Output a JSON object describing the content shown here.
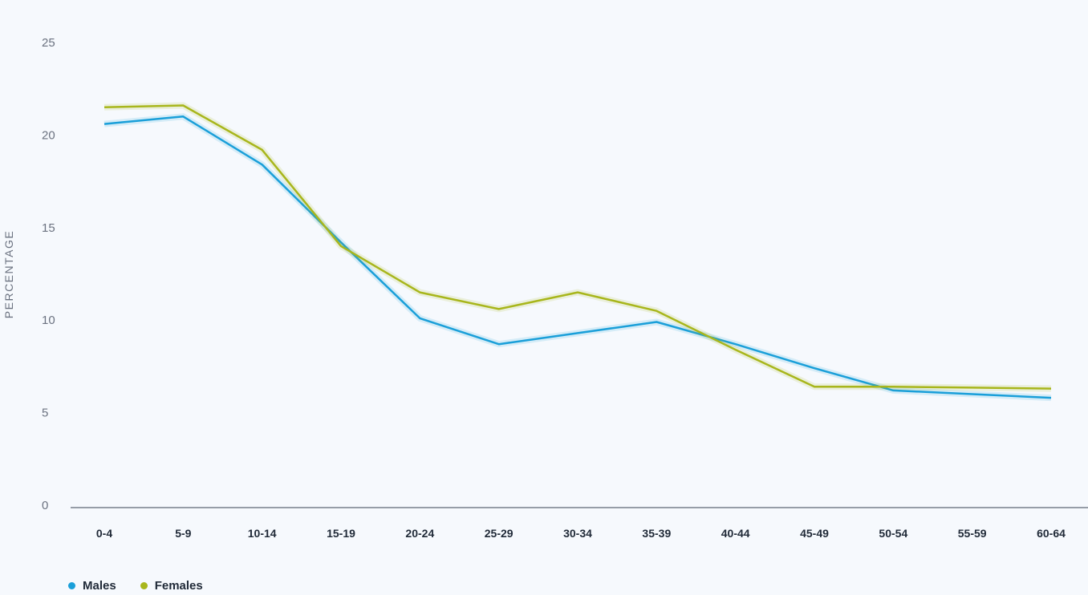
{
  "chart_data": {
    "type": "line",
    "title": "",
    "xlabel": "",
    "ylabel": "PERCENTAGE",
    "ylim": [
      0,
      25
    ],
    "yticks": [
      0,
      5,
      10,
      15,
      20,
      25
    ],
    "grid": false,
    "legend_position": "bottom-left",
    "categories": [
      "0-4",
      "5-9",
      "10-14",
      "15-19",
      "20-24",
      "25-29",
      "30-34",
      "35-39",
      "40-44",
      "45-49",
      "50-54",
      "55-59",
      "60-64"
    ],
    "series": [
      {
        "name": "Males",
        "color": "#1a9fd9",
        "values": [
          20.6,
          21.0,
          18.4,
          14.2,
          10.1,
          8.7,
          9.3,
          9.9,
          8.7,
          7.4,
          6.2,
          6.0,
          5.8
        ]
      },
      {
        "name": "Females",
        "color": "#a8b61c",
        "values": [
          21.5,
          21.6,
          19.2,
          14.0,
          11.5,
          10.6,
          11.5,
          10.5,
          8.4,
          6.4,
          6.4,
          6.35,
          6.3
        ]
      }
    ]
  }
}
